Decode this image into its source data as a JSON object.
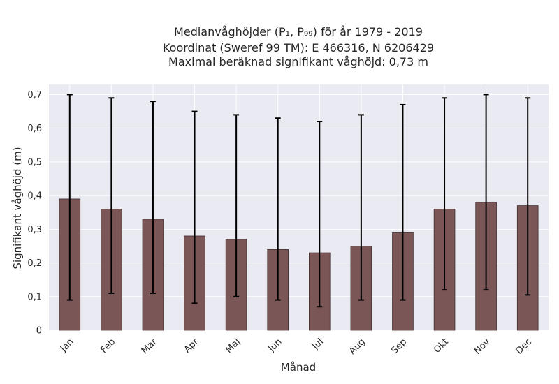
{
  "chart_data": {
    "type": "bar",
    "title_lines": [
      "Medianvåghöjder (P₁, P₉₉) för år 1979 - 2019",
      "Koordinat (Sweref 99 TM): E 466316, N 6206429",
      "Maximal beräknad signifikant våghöjd: 0,73 m"
    ],
    "xlabel": "Månad",
    "ylabel": "Signifikant våghöjd (m)",
    "categories": [
      "Jan",
      "Feb",
      "Mar",
      "Apr",
      "Maj",
      "Jun",
      "Jul",
      "Aug",
      "Sep",
      "Okt",
      "Nov",
      "Dec"
    ],
    "values": [
      0.39,
      0.36,
      0.33,
      0.28,
      0.27,
      0.24,
      0.23,
      0.25,
      0.29,
      0.36,
      0.38,
      0.37
    ],
    "p1": [
      0.09,
      0.11,
      0.11,
      0.08,
      0.1,
      0.09,
      0.07,
      0.09,
      0.09,
      0.12,
      0.12,
      0.105
    ],
    "p99": [
      0.7,
      0.69,
      0.68,
      0.65,
      0.64,
      0.63,
      0.62,
      0.64,
      0.67,
      0.69,
      0.7,
      0.69
    ],
    "ylim": [
      0,
      0.73
    ],
    "yticks": [
      0,
      0.1,
      0.2,
      0.3,
      0.4,
      0.5,
      0.6,
      0.7
    ],
    "ytick_labels": [
      "0",
      "0,1",
      "0,2",
      "0,3",
      "0,4",
      "0,5",
      "0,6",
      "0,7"
    ],
    "grid": true,
    "colors": {
      "bar": "#7a5656",
      "bar_edge": "#3f2e2e",
      "errorbar": "#000000",
      "plot_bg": "#eaeaf2",
      "grid": "#ffffff",
      "text": "#262626"
    }
  }
}
